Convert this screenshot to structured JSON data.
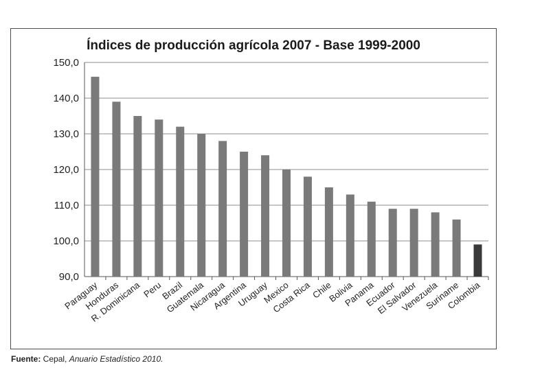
{
  "chart_data": {
    "type": "bar",
    "title": "Índices de producción agrícola 2007 - Base 1999-2000",
    "xlabel": "",
    "ylabel": "",
    "ylim": [
      90,
      150
    ],
    "y_ticks": [
      "150,0",
      "140,0",
      "130,0",
      "120,0",
      "110,0",
      "100,0",
      "90,0"
    ],
    "y_tick_values": [
      150,
      140,
      130,
      120,
      110,
      100,
      90
    ],
    "grid": true,
    "legend": "none",
    "categories": [
      "Paraguay",
      "Honduras",
      "R. Dominicana",
      "Peru",
      "Brazil",
      "Guatemala",
      "Nicaragua",
      "Argentina",
      "Uruguay",
      "Mexico",
      "Costa Rica",
      "Chile",
      "Bolivia",
      "Panama",
      "Ecuador",
      "El Salvador",
      "Venezuela",
      "Suriname",
      "Colombia"
    ],
    "values": [
      146,
      139,
      135,
      134,
      132,
      130,
      128,
      125,
      124,
      120,
      118,
      115,
      113,
      111,
      109,
      109,
      108,
      106,
      99
    ],
    "bar_color": "#7a7a7a",
    "highlight_color": "#3a3a3a",
    "highlight_category": "Colombia",
    "grid_color": "#8c8c8c"
  },
  "source": {
    "label": "Fuente:",
    "text": " Cepal, ",
    "publication": "Anuario Estadístico 2010."
  }
}
